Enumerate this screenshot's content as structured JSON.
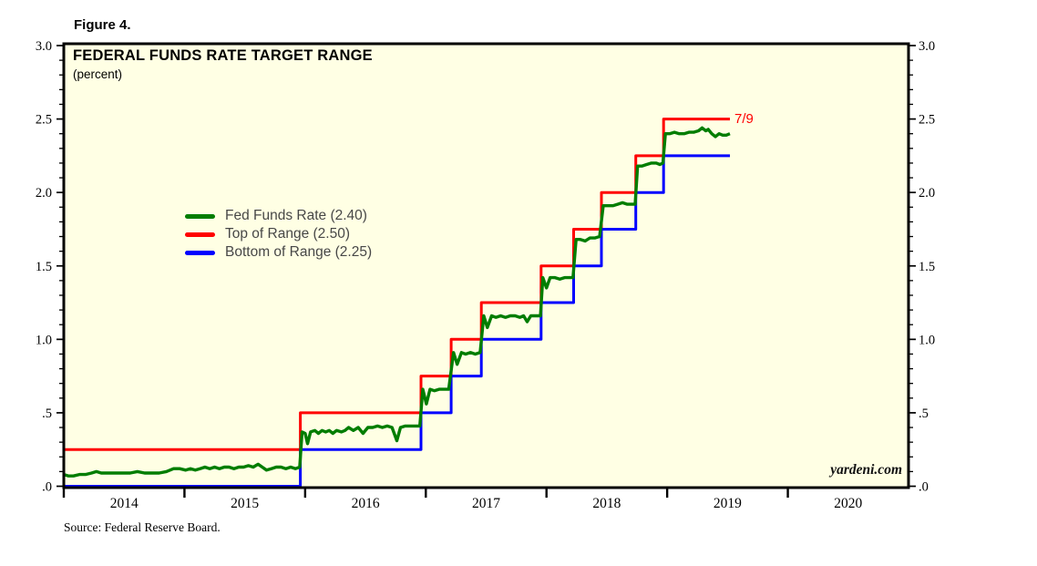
{
  "figure_label": "Figure 4.",
  "source_note": "Source: Federal Reserve Board.",
  "chart_data": {
    "type": "line",
    "title": "FEDERAL FUNDS RATE TARGET RANGE",
    "subtitle": "(percent)",
    "plot_bg": "#FFFFE4",
    "grid": false,
    "legend_position": "inside-left",
    "x_domain": [
      2014,
      2021
    ],
    "y_domain": [
      0,
      3
    ],
    "y_ticks": {
      "values": [
        0,
        0.5,
        1.0,
        1.5,
        2.0,
        2.5,
        3.0
      ],
      "labels": [
        ".0",
        ".5",
        "1.0",
        "1.5",
        "2.0",
        "2.5",
        "3.0"
      ],
      "minor_step": 0.1
    },
    "x_ticks": {
      "boundaries": [
        2014,
        2015,
        2016,
        2017,
        2018,
        2019,
        2020
      ],
      "year_labels": [
        "2014",
        "2015",
        "2016",
        "2017",
        "2018",
        "2019",
        "2020"
      ]
    },
    "legend": [
      {
        "label": "Fed Funds Rate (2.40)",
        "color": "#007D00"
      },
      {
        "label": "Top of Range (2.50)",
        "color": "#FF0000"
      },
      {
        "label": "Bottom of Range (2.25)",
        "color": "#0000FF"
      }
    ],
    "annotation": {
      "text": "7/9",
      "x": 2019.56,
      "y": 2.5,
      "color": "#FF0000"
    },
    "watermark": "yardeni.com",
    "series": [
      {
        "id": "top-of-range",
        "name": "Top of Range (2.50)",
        "color": "#FF0000",
        "type": "step",
        "width": 3,
        "end": 2019.52,
        "steps": [
          [
            2014.0,
            0.25
          ],
          [
            2015.96,
            0.5
          ],
          [
            2016.96,
            0.75
          ],
          [
            2017.21,
            1.0
          ],
          [
            2017.46,
            1.25
          ],
          [
            2017.955,
            1.5
          ],
          [
            2018.225,
            1.75
          ],
          [
            2018.455,
            2.0
          ],
          [
            2018.74,
            2.25
          ],
          [
            2018.97,
            2.5
          ]
        ]
      },
      {
        "id": "bottom-of-range",
        "name": "Bottom of Range (2.25)",
        "color": "#0000FF",
        "type": "step",
        "width": 3,
        "end": 2019.52,
        "steps": [
          [
            2014.0,
            0.0
          ],
          [
            2015.96,
            0.25
          ],
          [
            2016.96,
            0.5
          ],
          [
            2017.21,
            0.75
          ],
          [
            2017.46,
            1.0
          ],
          [
            2017.955,
            1.25
          ],
          [
            2018.225,
            1.5
          ],
          [
            2018.455,
            1.75
          ],
          [
            2018.74,
            2.0
          ],
          [
            2018.97,
            2.25
          ]
        ]
      },
      {
        "id": "fed-funds-rate",
        "name": "Fed Funds Rate (2.40)",
        "color": "#007D00",
        "type": "poly",
        "width": 3.4,
        "points": [
          [
            2014.0,
            0.08
          ],
          [
            2014.04,
            0.07
          ],
          [
            2014.08,
            0.07
          ],
          [
            2014.13,
            0.08
          ],
          [
            2014.18,
            0.08
          ],
          [
            2014.23,
            0.09
          ],
          [
            2014.27,
            0.1
          ],
          [
            2014.31,
            0.09
          ],
          [
            2014.37,
            0.09
          ],
          [
            2014.43,
            0.09
          ],
          [
            2014.49,
            0.09
          ],
          [
            2014.55,
            0.09
          ],
          [
            2014.61,
            0.1
          ],
          [
            2014.67,
            0.09
          ],
          [
            2014.73,
            0.09
          ],
          [
            2014.79,
            0.09
          ],
          [
            2014.85,
            0.1
          ],
          [
            2014.91,
            0.12
          ],
          [
            2014.96,
            0.12
          ],
          [
            2015.01,
            0.11
          ],
          [
            2015.05,
            0.12
          ],
          [
            2015.09,
            0.11
          ],
          [
            2015.13,
            0.12
          ],
          [
            2015.17,
            0.13
          ],
          [
            2015.21,
            0.12
          ],
          [
            2015.25,
            0.13
          ],
          [
            2015.29,
            0.12
          ],
          [
            2015.33,
            0.13
          ],
          [
            2015.37,
            0.13
          ],
          [
            2015.41,
            0.12
          ],
          [
            2015.45,
            0.13
          ],
          [
            2015.49,
            0.13
          ],
          [
            2015.53,
            0.14
          ],
          [
            2015.57,
            0.13
          ],
          [
            2015.61,
            0.15
          ],
          [
            2015.645,
            0.13
          ],
          [
            2015.68,
            0.11
          ],
          [
            2015.72,
            0.12
          ],
          [
            2015.76,
            0.13
          ],
          [
            2015.8,
            0.13
          ],
          [
            2015.84,
            0.12
          ],
          [
            2015.88,
            0.13
          ],
          [
            2015.92,
            0.12
          ],
          [
            2015.955,
            0.13
          ],
          [
            2015.975,
            0.37
          ],
          [
            2016.0,
            0.36
          ],
          [
            2016.02,
            0.29
          ],
          [
            2016.045,
            0.37
          ],
          [
            2016.08,
            0.38
          ],
          [
            2016.11,
            0.36
          ],
          [
            2016.14,
            0.38
          ],
          [
            2016.17,
            0.37
          ],
          [
            2016.2,
            0.38
          ],
          [
            2016.23,
            0.36
          ],
          [
            2016.26,
            0.38
          ],
          [
            2016.3,
            0.37
          ],
          [
            2016.33,
            0.38
          ],
          [
            2016.36,
            0.4
          ],
          [
            2016.4,
            0.38
          ],
          [
            2016.44,
            0.4
          ],
          [
            2016.48,
            0.36
          ],
          [
            2016.52,
            0.4
          ],
          [
            2016.56,
            0.4
          ],
          [
            2016.6,
            0.41
          ],
          [
            2016.64,
            0.4
          ],
          [
            2016.68,
            0.41
          ],
          [
            2016.72,
            0.4
          ],
          [
            2016.76,
            0.31
          ],
          [
            2016.79,
            0.4
          ],
          [
            2016.83,
            0.41
          ],
          [
            2016.87,
            0.41
          ],
          [
            2016.91,
            0.41
          ],
          [
            2016.95,
            0.41
          ],
          [
            2016.975,
            0.66
          ],
          [
            2017.005,
            0.56
          ],
          [
            2017.035,
            0.66
          ],
          [
            2017.07,
            0.65
          ],
          [
            2017.11,
            0.66
          ],
          [
            2017.15,
            0.66
          ],
          [
            2017.19,
            0.66
          ],
          [
            2017.23,
            0.91
          ],
          [
            2017.26,
            0.83
          ],
          [
            2017.295,
            0.91
          ],
          [
            2017.33,
            0.9
          ],
          [
            2017.37,
            0.91
          ],
          [
            2017.41,
            0.9
          ],
          [
            2017.45,
            0.91
          ],
          [
            2017.48,
            1.16
          ],
          [
            2017.51,
            1.08
          ],
          [
            2017.545,
            1.16
          ],
          [
            2017.58,
            1.15
          ],
          [
            2017.62,
            1.16
          ],
          [
            2017.66,
            1.15
          ],
          [
            2017.7,
            1.16
          ],
          [
            2017.74,
            1.16
          ],
          [
            2017.78,
            1.15
          ],
          [
            2017.81,
            1.16
          ],
          [
            2017.84,
            1.12
          ],
          [
            2017.87,
            1.16
          ],
          [
            2017.91,
            1.16
          ],
          [
            2017.95,
            1.16
          ],
          [
            2017.97,
            1.42
          ],
          [
            2018.0,
            1.35
          ],
          [
            2018.03,
            1.42
          ],
          [
            2018.07,
            1.42
          ],
          [
            2018.11,
            1.41
          ],
          [
            2018.15,
            1.42
          ],
          [
            2018.19,
            1.42
          ],
          [
            2018.22,
            1.42
          ],
          [
            2018.245,
            1.68
          ],
          [
            2018.28,
            1.68
          ],
          [
            2018.32,
            1.67
          ],
          [
            2018.36,
            1.69
          ],
          [
            2018.4,
            1.69
          ],
          [
            2018.44,
            1.7
          ],
          [
            2018.47,
            1.91
          ],
          [
            2018.51,
            1.91
          ],
          [
            2018.55,
            1.91
          ],
          [
            2018.59,
            1.92
          ],
          [
            2018.63,
            1.93
          ],
          [
            2018.67,
            1.92
          ],
          [
            2018.71,
            1.92
          ],
          [
            2018.735,
            1.92
          ],
          [
            2018.755,
            2.18
          ],
          [
            2018.79,
            2.18
          ],
          [
            2018.83,
            2.19
          ],
          [
            2018.87,
            2.2
          ],
          [
            2018.91,
            2.2
          ],
          [
            2018.94,
            2.19
          ],
          [
            2018.965,
            2.2
          ],
          [
            2018.985,
            2.4
          ],
          [
            2019.02,
            2.4
          ],
          [
            2019.06,
            2.41
          ],
          [
            2019.1,
            2.4
          ],
          [
            2019.14,
            2.4
          ],
          [
            2019.18,
            2.41
          ],
          [
            2019.22,
            2.41
          ],
          [
            2019.26,
            2.42
          ],
          [
            2019.29,
            2.44
          ],
          [
            2019.32,
            2.42
          ],
          [
            2019.34,
            2.43
          ],
          [
            2019.37,
            2.4
          ],
          [
            2019.4,
            2.38
          ],
          [
            2019.43,
            2.4
          ],
          [
            2019.46,
            2.39
          ],
          [
            2019.49,
            2.39
          ],
          [
            2019.52,
            2.4
          ]
        ]
      }
    ]
  }
}
